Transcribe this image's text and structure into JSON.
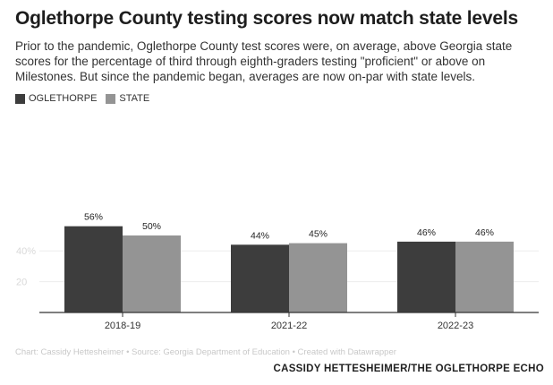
{
  "title": "Oglethorpe County testing scores now match state levels",
  "subtitle": "Prior to the pandemic, Oglethorpe County test scores were, on average, above Georgia state scores for the percentage of third through eighth-graders testing \"proficient\" or above on Milestones. But since the pandemic began, averages are now on-par with state levels.",
  "credit": "Chart: Cassidy Hettesheimer • Source: Georgia Department of Education • Created with Datawrapper",
  "byline": "CASSIDY HETTESHEIMER/THE OGLETHORPE ECHO",
  "colors": {
    "oglethorpe": "#3d3d3d",
    "state": "#949494",
    "gridline": "#ededed",
    "axis": "#333333"
  },
  "chart_data": {
    "type": "bar",
    "categories": [
      "2018-19",
      "2021-22",
      "2022-23"
    ],
    "series": [
      {
        "name": "OGLETHORPE",
        "values": [
          56,
          44,
          46
        ],
        "labels": [
          "56%",
          "44%",
          "46%"
        ]
      },
      {
        "name": "STATE",
        "values": [
          50,
          45,
          46
        ],
        "labels": [
          "50%",
          "45%",
          "46%"
        ]
      }
    ],
    "yticks": [
      {
        "value": 20,
        "label": "20"
      },
      {
        "value": 40,
        "label": "40%"
      }
    ],
    "ylim": [
      0,
      60
    ],
    "grid": true,
    "legend_position": "top-left"
  }
}
